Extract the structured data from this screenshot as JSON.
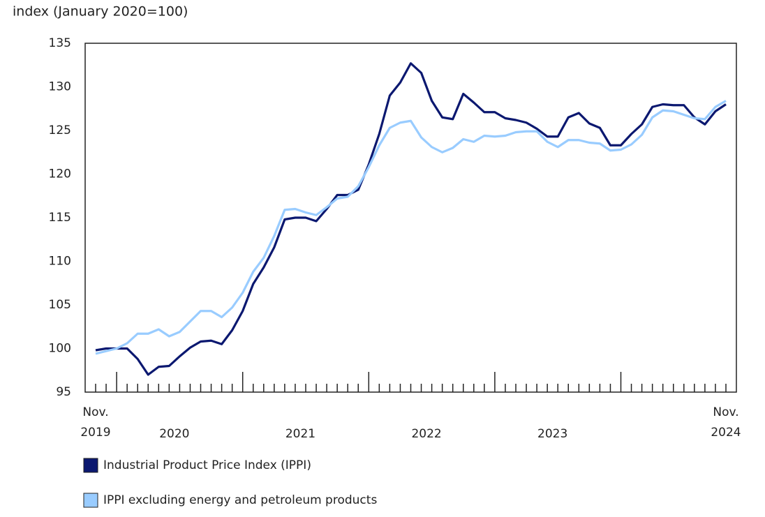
{
  "chart_data": {
    "type": "line",
    "title": "index (January 2020=100)",
    "categories": [
      "Nov.\n2019",
      null,
      null,
      null,
      null,
      null,
      null,
      null,
      null,
      null,
      null,
      null,
      null,
      null,
      null,
      null,
      null,
      null,
      null,
      null,
      null,
      null,
      null,
      null,
      null,
      null,
      null,
      null,
      null,
      null,
      null,
      null,
      null,
      null,
      null,
      null,
      null,
      null,
      null,
      null,
      null,
      null,
      null,
      null,
      null,
      null,
      null,
      null,
      null,
      null,
      null,
      null,
      null,
      null,
      null,
      null,
      null,
      null,
      null,
      null,
      "Nov.\n2024"
    ],
    "year_labels": [
      "2020",
      "2021",
      "2022",
      "2023"
    ],
    "series": [
      {
        "name": "Industrial Product Price Index (IPPI)",
        "color": "#0b1870",
        "values": [
          99.8,
          100.0,
          100.0,
          100.0,
          98.8,
          97.0,
          97.9,
          98.0,
          99.1,
          100.1,
          100.8,
          100.9,
          100.5,
          102.1,
          104.3,
          107.4,
          109.3,
          111.6,
          114.8,
          115.0,
          115.0,
          114.6,
          116.0,
          117.6,
          117.6,
          118.2,
          121.1,
          124.6,
          129.0,
          130.5,
          132.7,
          131.6,
          128.4,
          126.5,
          126.3,
          129.2,
          128.2,
          127.1,
          127.1,
          126.4,
          126.2,
          125.9,
          125.2,
          124.3,
          124.3,
          126.5,
          127.0,
          125.8,
          125.3,
          123.3,
          123.3,
          124.6,
          125.7,
          127.7,
          128.0,
          127.9,
          127.9,
          126.5,
          125.7,
          127.2,
          128.0
        ]
      },
      {
        "name": "IPPI excluding energy and petroleum products",
        "color": "#99ccff",
        "values": [
          99.4,
          99.7,
          100.0,
          100.6,
          101.7,
          101.7,
          102.2,
          101.4,
          101.9,
          103.1,
          104.3,
          104.3,
          103.6,
          104.7,
          106.4,
          108.8,
          110.4,
          112.9,
          115.9,
          116.0,
          115.6,
          115.3,
          116.2,
          117.2,
          117.4,
          118.6,
          120.8,
          123.3,
          125.3,
          125.9,
          126.1,
          124.2,
          123.1,
          122.5,
          123.0,
          124.0,
          123.7,
          124.4,
          124.3,
          124.4,
          124.8,
          124.9,
          124.9,
          123.7,
          123.1,
          123.9,
          123.9,
          123.6,
          123.5,
          122.7,
          122.8,
          123.4,
          124.5,
          126.5,
          127.3,
          127.2,
          126.8,
          126.4,
          126.3,
          127.7,
          128.4
        ]
      }
    ],
    "ylim": [
      95,
      135
    ],
    "yticks": [
      95,
      100,
      105,
      110,
      115,
      120,
      125,
      130,
      135
    ],
    "grid": false
  }
}
